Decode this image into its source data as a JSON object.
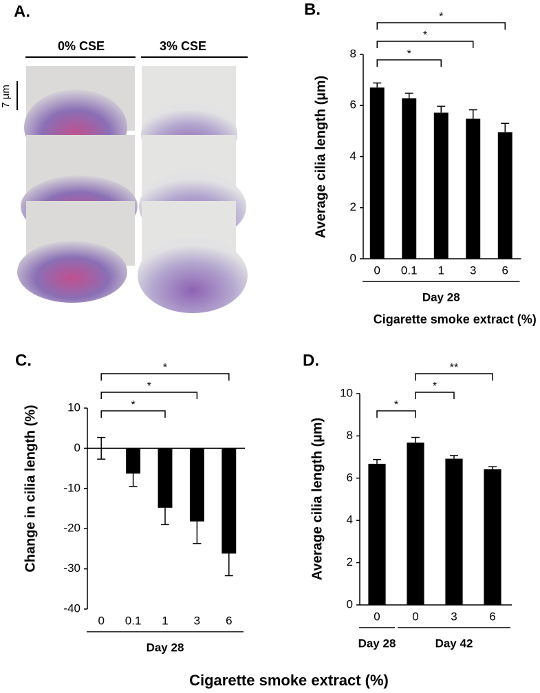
{
  "panel_a": {
    "panel_label": "A.",
    "columns": [
      "0% CSE",
      "3% CSE"
    ],
    "scale_bar": "7 µm"
  },
  "figure_xlabel": "Cigarette smoke extract (%)",
  "chart_data": [
    {
      "type": "bar",
      "panel_label": "B.",
      "ylabel": "Average cilia length (µm)",
      "xlabel": "Cigarette smoke extract (%)",
      "categories": [
        "0",
        "0.1",
        "1",
        "3",
        "6"
      ],
      "values": [
        6.7,
        6.28,
        5.72,
        5.48,
        4.95
      ],
      "errors": [
        0.18,
        0.2,
        0.25,
        0.35,
        0.35
      ],
      "color": "#000000",
      "ylim": [
        0,
        8
      ],
      "yticks": [
        0,
        2,
        4,
        6,
        8
      ],
      "groups": [
        {
          "label": "Day 28",
          "from": 0,
          "to": 4
        }
      ],
      "brackets": [
        {
          "label": "*",
          "from": 0,
          "to": 4
        },
        {
          "label": "*",
          "from": 0,
          "to": 3
        },
        {
          "label": "*",
          "from": 0,
          "to": 2
        }
      ]
    },
    {
      "type": "bar",
      "panel_label": "C.",
      "ylabel": "Change in cilia length (%)",
      "categories": [
        "0",
        "0.1",
        "1",
        "3",
        "6"
      ],
      "values": [
        0,
        -6.3,
        -14.8,
        -18.2,
        -26.2
      ],
      "errors": [
        2.7,
        3.2,
        4.2,
        5.5,
        5.5
      ],
      "color": "#000000",
      "ylim": [
        -40,
        10
      ],
      "yticks": [
        -40,
        -30,
        -20,
        -10,
        0,
        10
      ],
      "groups": [
        {
          "label": "Day 28",
          "from": 0,
          "to": 4
        }
      ],
      "brackets": [
        {
          "label": "*",
          "from": 0,
          "to": 4
        },
        {
          "label": "*",
          "from": 0,
          "to": 3
        },
        {
          "label": "*",
          "from": 0,
          "to": 2
        }
      ]
    },
    {
      "type": "bar",
      "panel_label": "D.",
      "ylabel": "Average cilia length (µm)",
      "categories": [
        "0",
        "0",
        "3",
        "6"
      ],
      "values": [
        6.68,
        7.68,
        6.92,
        6.42
      ],
      "errors": [
        0.2,
        0.25,
        0.15,
        0.12
      ],
      "color": "#000000",
      "ylim": [
        0,
        10
      ],
      "yticks": [
        0,
        2,
        4,
        6,
        8,
        10
      ],
      "groups": [
        {
          "label": "Day 28",
          "from": 0,
          "to": 0
        },
        {
          "label": "Day 42",
          "from": 1,
          "to": 3
        }
      ],
      "brackets": [
        {
          "label": "**",
          "from": 1,
          "to": 3
        },
        {
          "label": "*",
          "from": 1,
          "to": 2
        },
        {
          "label": "*",
          "from": 0,
          "to": 1
        }
      ]
    }
  ]
}
